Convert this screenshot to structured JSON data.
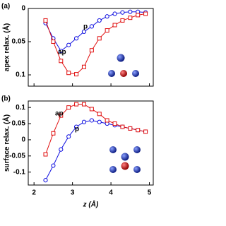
{
  "chart_data": [
    {
      "type": "line",
      "panel_label": "(a)",
      "ylabel": "apex relax. (Å)",
      "xlim": [
        1.85,
        5.1
      ],
      "xticks": [
        2,
        3,
        4,
        5
      ],
      "ylim": [
        0,
        0.117
      ],
      "yticks": [
        0,
        0.05,
        0.1
      ],
      "y_inverted": true,
      "x": [
        2.3,
        2.5,
        2.7,
        2.9,
        3.1,
        3.3,
        3.5,
        3.7,
        3.9,
        4.1,
        4.3,
        4.5,
        4.7,
        4.9
      ],
      "series": [
        {
          "name": "p",
          "color": "#1010e0",
          "marker": "circle",
          "values": [
            0.022,
            0.045,
            0.064,
            0.055,
            0.045,
            0.035,
            0.027,
            0.018,
            0.012,
            0.008,
            0.006,
            0.005,
            0.005,
            0.006
          ]
        },
        {
          "name": "ap",
          "color": "#e01010",
          "marker": "square",
          "values": [
            0.018,
            0.05,
            0.079,
            0.097,
            0.099,
            0.088,
            0.063,
            0.045,
            0.033,
            0.025,
            0.018,
            0.014,
            0.01,
            0.008
          ]
        }
      ]
    },
    {
      "type": "line",
      "panel_label": "(b)",
      "ylabel": "surface relax. (Å)",
      "xlabel": "z (Å)",
      "xlim": [
        1.85,
        5.1
      ],
      "xticks": [
        2,
        3,
        4,
        5
      ],
      "ylim": [
        -0.14,
        0.12
      ],
      "yticks": [
        -0.1,
        -0.05,
        0,
        0.05,
        0.1
      ],
      "y_inverted": false,
      "x": [
        2.3,
        2.5,
        2.7,
        2.9,
        3.1,
        3.3,
        3.5,
        3.7,
        3.9,
        4.1,
        4.3,
        4.5,
        4.7,
        4.9
      ],
      "series": [
        {
          "name": "p",
          "color": "#1010e0",
          "marker": "circle",
          "values": [
            -0.125,
            -0.08,
            -0.03,
            0.01,
            0.04,
            0.055,
            0.06,
            0.055,
            0.05,
            0.045,
            0.04,
            0.035,
            0.03,
            0.025
          ]
        },
        {
          "name": "ap",
          "color": "#e01010",
          "marker": "square",
          "values": [
            -0.045,
            0.02,
            0.075,
            0.1,
            0.11,
            0.11,
            0.095,
            0.08,
            0.06,
            0.05,
            0.04,
            0.035,
            0.03,
            0.025
          ]
        }
      ]
    }
  ]
}
